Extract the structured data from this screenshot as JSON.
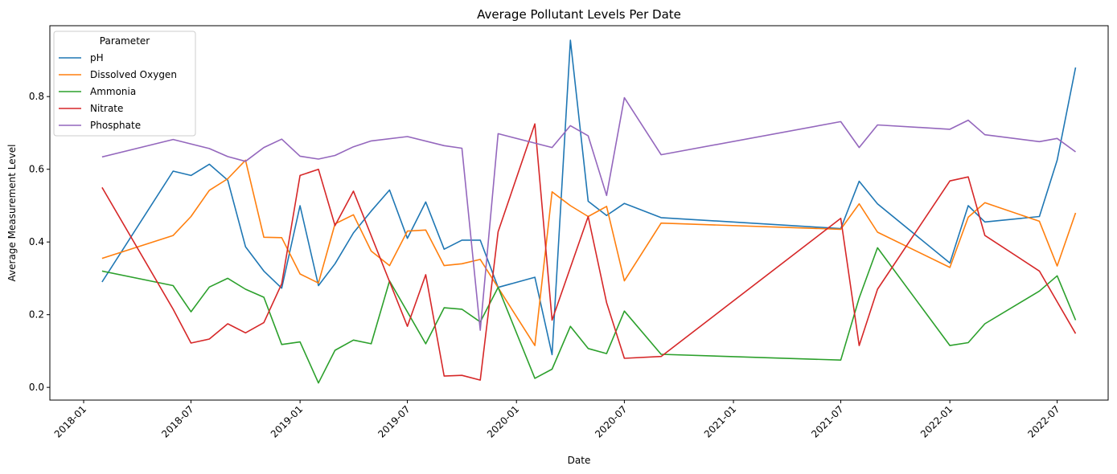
{
  "chart_data": {
    "type": "line",
    "title": "Average Pollutant Levels Per Date",
    "xlabel": "Date",
    "ylabel": "Average Measurement Level",
    "x_tick_labels": [
      "2018-01",
      "2018-07",
      "2019-01",
      "2019-07",
      "2020-01",
      "2020-07",
      "2021-01",
      "2021-07",
      "2022-01",
      "2022-07"
    ],
    "x_tick_dates": [
      "2018-01-01",
      "2018-07-01",
      "2019-01-01",
      "2019-07-01",
      "2020-01-01",
      "2020-07-01",
      "2021-01-01",
      "2021-07-01",
      "2022-01-01",
      "2022-07-01"
    ],
    "y_ticks": [
      0.0,
      0.2,
      0.4,
      0.6,
      0.8
    ],
    "y_tick_labels": [
      "0.0",
      "0.2",
      "0.4",
      "0.6",
      "0.8"
    ],
    "xlim": [
      "2017-11-05",
      "2022-09-25"
    ],
    "ylim": [
      -0.035,
      0.995
    ],
    "grid": false,
    "legend": {
      "title": "Parameter",
      "placement": "top-left"
    },
    "series": [
      {
        "name": "pH",
        "color": "#1f77b4",
        "points": [
          [
            "2018-02-01",
            0.29
          ],
          [
            "2018-06-01",
            0.595
          ],
          [
            "2018-07-01",
            0.583
          ],
          [
            "2018-08-01",
            0.614
          ],
          [
            "2018-09-01",
            0.57
          ],
          [
            "2018-10-01",
            0.387
          ],
          [
            "2018-11-01",
            0.32
          ],
          [
            "2018-12-01",
            0.273
          ],
          [
            "2019-01-01",
            0.5
          ],
          [
            "2019-02-01",
            0.28
          ],
          [
            "2019-03-01",
            0.34
          ],
          [
            "2019-04-01",
            0.425
          ],
          [
            "2019-05-01",
            0.485
          ],
          [
            "2019-06-01",
            0.543
          ],
          [
            "2019-07-01",
            0.41
          ],
          [
            "2019-08-01",
            0.51
          ],
          [
            "2019-09-01",
            0.38
          ],
          [
            "2019-10-01",
            0.405
          ],
          [
            "2019-11-01",
            0.405
          ],
          [
            "2019-12-01",
            0.275
          ],
          [
            "2020-02-01",
            0.303
          ],
          [
            "2020-03-01",
            0.09
          ],
          [
            "2020-04-01",
            0.955
          ],
          [
            "2020-05-01",
            0.512
          ],
          [
            "2020-06-01",
            0.473
          ],
          [
            "2020-07-01",
            0.506
          ],
          [
            "2020-09-01",
            0.467
          ],
          [
            "2021-07-01",
            0.437
          ],
          [
            "2021-08-01",
            0.567
          ],
          [
            "2021-09-01",
            0.505
          ],
          [
            "2022-01-01",
            0.342
          ],
          [
            "2022-02-01",
            0.5
          ],
          [
            "2022-03-01",
            0.455
          ],
          [
            "2022-06-01",
            0.47
          ],
          [
            "2022-07-01",
            0.625
          ],
          [
            "2022-08-01",
            0.88
          ]
        ]
      },
      {
        "name": "Dissolved Oxygen",
        "color": "#ff7f0e",
        "points": [
          [
            "2018-02-01",
            0.355
          ],
          [
            "2018-06-01",
            0.418
          ],
          [
            "2018-07-01",
            0.47
          ],
          [
            "2018-08-01",
            0.542
          ],
          [
            "2018-09-01",
            0.574
          ],
          [
            "2018-10-01",
            0.625
          ],
          [
            "2018-11-01",
            0.413
          ],
          [
            "2018-12-01",
            0.412
          ],
          [
            "2019-01-01",
            0.312
          ],
          [
            "2019-02-01",
            0.287
          ],
          [
            "2019-03-01",
            0.45
          ],
          [
            "2019-04-01",
            0.475
          ],
          [
            "2019-05-01",
            0.375
          ],
          [
            "2019-06-01",
            0.335
          ],
          [
            "2019-07-01",
            0.43
          ],
          [
            "2019-08-01",
            0.433
          ],
          [
            "2019-09-01",
            0.335
          ],
          [
            "2019-10-01",
            0.34
          ],
          [
            "2019-11-01",
            0.352
          ],
          [
            "2020-02-01",
            0.115
          ],
          [
            "2020-03-01",
            0.538
          ],
          [
            "2020-04-01",
            0.5
          ],
          [
            "2020-05-01",
            0.47
          ],
          [
            "2020-06-01",
            0.498
          ],
          [
            "2020-07-01",
            0.293
          ],
          [
            "2020-09-01",
            0.452
          ],
          [
            "2021-07-01",
            0.435
          ],
          [
            "2021-08-01",
            0.505
          ],
          [
            "2021-09-01",
            0.427
          ],
          [
            "2022-01-01",
            0.33
          ],
          [
            "2022-02-01",
            0.468
          ],
          [
            "2022-03-01",
            0.508
          ],
          [
            "2022-06-01",
            0.457
          ],
          [
            "2022-07-01",
            0.334
          ],
          [
            "2022-08-01",
            0.48
          ]
        ]
      },
      {
        "name": "Ammonia",
        "color": "#2ca02c",
        "points": [
          [
            "2018-02-01",
            0.32
          ],
          [
            "2018-06-01",
            0.28
          ],
          [
            "2018-07-01",
            0.208
          ],
          [
            "2018-08-01",
            0.276
          ],
          [
            "2018-09-01",
            0.3
          ],
          [
            "2018-10-01",
            0.27
          ],
          [
            "2018-11-01",
            0.248
          ],
          [
            "2018-12-01",
            0.118
          ],
          [
            "2019-01-01",
            0.125
          ],
          [
            "2019-02-01",
            0.012
          ],
          [
            "2019-03-01",
            0.102
          ],
          [
            "2019-04-01",
            0.13
          ],
          [
            "2019-05-01",
            0.12
          ],
          [
            "2019-06-01",
            0.293
          ],
          [
            "2019-08-01",
            0.12
          ],
          [
            "2019-09-01",
            0.219
          ],
          [
            "2019-10-01",
            0.215
          ],
          [
            "2019-11-01",
            0.18
          ],
          [
            "2019-12-01",
            0.275
          ],
          [
            "2020-02-01",
            0.025
          ],
          [
            "2020-03-01",
            0.05
          ],
          [
            "2020-04-01",
            0.168
          ],
          [
            "2020-05-01",
            0.107
          ],
          [
            "2020-06-01",
            0.093
          ],
          [
            "2020-07-01",
            0.21
          ],
          [
            "2020-09-01",
            0.091
          ],
          [
            "2021-07-01",
            0.075
          ],
          [
            "2021-08-01",
            0.246
          ],
          [
            "2021-09-01",
            0.384
          ],
          [
            "2022-01-01",
            0.115
          ],
          [
            "2022-02-01",
            0.123
          ],
          [
            "2022-03-01",
            0.175
          ],
          [
            "2022-06-01",
            0.265
          ],
          [
            "2022-07-01",
            0.307
          ],
          [
            "2022-08-01",
            0.185
          ]
        ]
      },
      {
        "name": "Nitrate",
        "color": "#d62728",
        "points": [
          [
            "2018-02-01",
            0.55
          ],
          [
            "2018-06-01",
            0.215
          ],
          [
            "2018-07-01",
            0.122
          ],
          [
            "2018-08-01",
            0.133
          ],
          [
            "2018-09-01",
            0.175
          ],
          [
            "2018-10-01",
            0.15
          ],
          [
            "2018-11-01",
            0.178
          ],
          [
            "2018-12-01",
            0.285
          ],
          [
            "2019-01-01",
            0.583
          ],
          [
            "2019-02-01",
            0.6
          ],
          [
            "2019-03-01",
            0.445
          ],
          [
            "2019-04-01",
            0.54
          ],
          [
            "2019-07-01",
            0.168
          ],
          [
            "2019-08-01",
            0.31
          ],
          [
            "2019-09-01",
            0.031
          ],
          [
            "2019-10-01",
            0.033
          ],
          [
            "2019-11-01",
            0.02
          ],
          [
            "2019-12-01",
            0.428
          ],
          [
            "2020-02-01",
            0.725
          ],
          [
            "2020-03-01",
            0.185
          ],
          [
            "2020-05-01",
            0.47
          ],
          [
            "2020-06-01",
            0.233
          ],
          [
            "2020-07-01",
            0.08
          ],
          [
            "2020-09-01",
            0.085
          ],
          [
            "2021-07-01",
            0.465
          ],
          [
            "2021-08-01",
            0.115
          ],
          [
            "2021-09-01",
            0.27
          ],
          [
            "2022-01-01",
            0.568
          ],
          [
            "2022-02-01",
            0.579
          ],
          [
            "2022-03-01",
            0.418
          ],
          [
            "2022-06-01",
            0.32
          ],
          [
            "2022-08-01",
            0.148
          ]
        ]
      },
      {
        "name": "Phosphate",
        "color": "#9467bd",
        "points": [
          [
            "2018-02-01",
            0.634
          ],
          [
            "2018-06-01",
            0.682
          ],
          [
            "2018-08-01",
            0.657
          ],
          [
            "2018-09-01",
            0.635
          ],
          [
            "2018-10-01",
            0.622
          ],
          [
            "2018-11-01",
            0.66
          ],
          [
            "2018-12-01",
            0.683
          ],
          [
            "2019-01-01",
            0.636
          ],
          [
            "2019-02-01",
            0.628
          ],
          [
            "2019-03-01",
            0.638
          ],
          [
            "2019-04-01",
            0.662
          ],
          [
            "2019-05-01",
            0.678
          ],
          [
            "2019-07-01",
            0.69
          ],
          [
            "2019-09-01",
            0.665
          ],
          [
            "2019-10-01",
            0.658
          ],
          [
            "2019-11-01",
            0.157
          ],
          [
            "2019-12-01",
            0.698
          ],
          [
            "2020-03-01",
            0.66
          ],
          [
            "2020-04-01",
            0.72
          ],
          [
            "2020-05-01",
            0.692
          ],
          [
            "2020-06-01",
            0.528
          ],
          [
            "2020-07-01",
            0.797
          ],
          [
            "2020-09-01",
            0.64
          ],
          [
            "2021-07-01",
            0.731
          ],
          [
            "2021-08-01",
            0.66
          ],
          [
            "2021-09-01",
            0.722
          ],
          [
            "2022-01-01",
            0.71
          ],
          [
            "2022-02-01",
            0.735
          ],
          [
            "2022-03-01",
            0.695
          ],
          [
            "2022-06-01",
            0.676
          ],
          [
            "2022-07-01",
            0.685
          ],
          [
            "2022-08-01",
            0.648
          ]
        ]
      }
    ]
  }
}
